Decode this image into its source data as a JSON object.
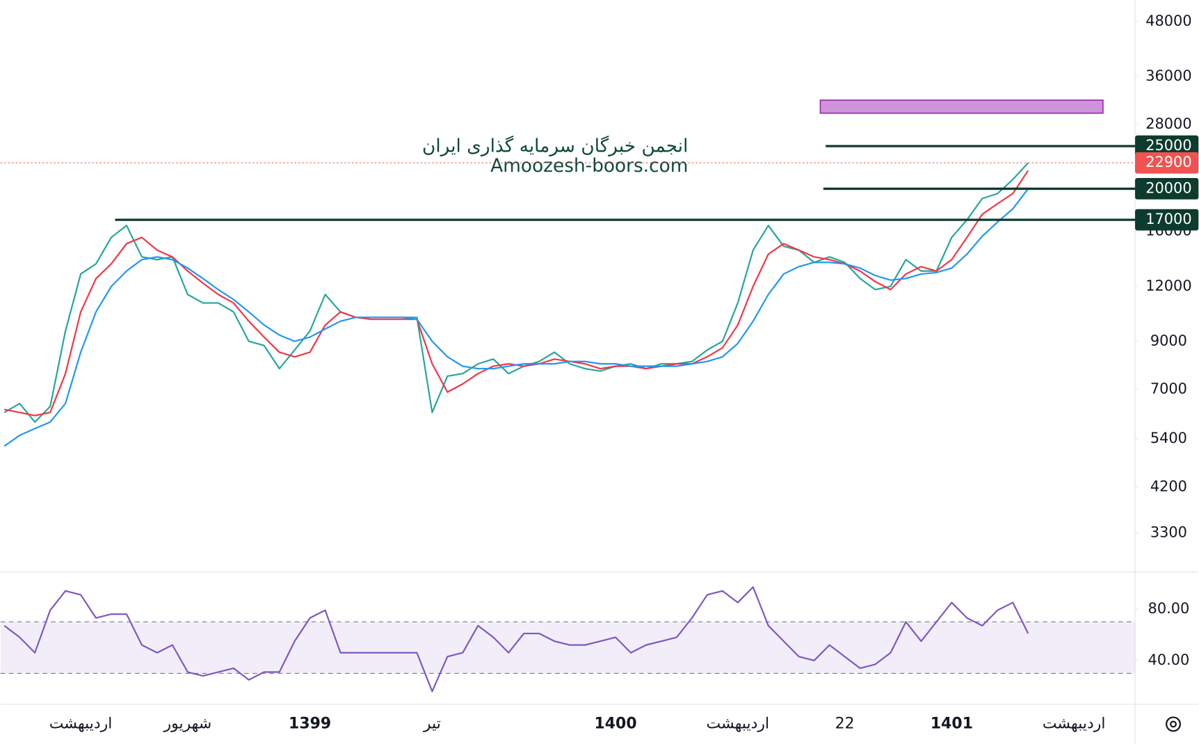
{
  "chart_data": [
    {
      "type": "line",
      "log_scale": true,
      "categories": [
        null,
        null,
        null,
        null,
        null,
        "اردیبهشت",
        null,
        null,
        null,
        null,
        null,
        null,
        "شهریور",
        null,
        null,
        null,
        null,
        null,
        null,
        null,
        "1399",
        null,
        null,
        null,
        null,
        null,
        null,
        null,
        "تیر",
        null,
        null,
        null,
        null,
        null,
        null,
        null,
        null,
        null,
        null,
        null,
        "1400",
        null,
        null,
        null,
        null,
        null,
        null,
        null,
        "اردیبهشت",
        null,
        null,
        null,
        null,
        null,
        null,
        "22",
        null,
        null,
        null,
        null,
        null,
        null,
        "1401",
        null,
        null,
        null,
        null,
        null,
        null,
        null,
        "اردیبهشت"
      ],
      "series": [
        {
          "color": "#26a69a",
          "values": [
            6200,
            6500,
            5900,
            6400,
            9500,
            12800,
            13500,
            15500,
            16500,
            14000,
            13800,
            14000,
            11500,
            11000,
            11000,
            10500,
            9000,
            8800,
            7800,
            8600,
            9500,
            11500,
            10500,
            10200,
            10200,
            10200,
            10200,
            10200,
            6200,
            7500,
            7600,
            8000,
            8200,
            7600,
            7900,
            8100,
            8500,
            8000,
            7800,
            7700,
            7900,
            8000,
            7800,
            8000,
            8000,
            8100,
            8600,
            9000,
            11000,
            14500,
            16500,
            14800,
            14500,
            13600,
            14000,
            13600,
            12500,
            11800,
            12000,
            13800,
            13000,
            13000,
            15500,
            17000,
            19000,
            19500,
            21000,
            22900,
            null,
            null,
            null
          ]
        },
        {
          "color": "#f23645",
          "values": [
            6300,
            6200,
            6100,
            6200,
            7600,
            10500,
            12500,
            13500,
            15000,
            15500,
            14500,
            14000,
            13000,
            12200,
            11500,
            11000,
            10000,
            9200,
            8500,
            8300,
            8500,
            9800,
            10500,
            10200,
            10100,
            10100,
            10100,
            10100,
            8000,
            6900,
            7200,
            7600,
            7900,
            8000,
            7900,
            8000,
            8200,
            8100,
            8000,
            7800,
            7900,
            7900,
            7800,
            7900,
            8000,
            8000,
            8300,
            8700,
            9800,
            12000,
            14200,
            15000,
            14500,
            14000,
            13800,
            13500,
            13000,
            12300,
            11800,
            12800,
            13300,
            13000,
            13800,
            15500,
            17500,
            18500,
            19500,
            22000,
            null,
            null,
            null
          ]
        },
        {
          "color": "#2196f3",
          "values": [
            5200,
            5500,
            5700,
            5900,
            6500,
            8500,
            10500,
            12000,
            13000,
            13800,
            14000,
            13800,
            13200,
            12500,
            11800,
            11200,
            10500,
            9800,
            9300,
            9000,
            9200,
            9600,
            10000,
            10200,
            10200,
            10200,
            10200,
            10100,
            9000,
            8300,
            7900,
            7800,
            7800,
            7900,
            8000,
            8000,
            8000,
            8100,
            8100,
            8000,
            8000,
            7900,
            7900,
            7900,
            7900,
            8000,
            8100,
            8300,
            8900,
            10000,
            11500,
            12800,
            13300,
            13600,
            13600,
            13500,
            13200,
            12700,
            12400,
            12500,
            12800,
            12900,
            13200,
            14200,
            15600,
            16800,
            18000,
            20000,
            null,
            null,
            null
          ]
        }
      ],
      "ylim": [
        2700,
        53700
      ],
      "yticks": [
        48000,
        36000,
        28000,
        16000,
        12000,
        9000,
        7000,
        5400,
        4200,
        3300
      ],
      "levels": [
        {
          "value": 25000,
          "color": "#0d3b2e"
        },
        {
          "value": 20000,
          "color": "#0d3b2e"
        },
        {
          "value": 17000,
          "color": "#0d3b2e"
        }
      ],
      "last": {
        "value": 22900,
        "color": "#f05350"
      },
      "zone": {
        "ylim": [
          29700,
          31800
        ],
        "color": "#ce93d8"
      },
      "watermark": [
        "انجمن خبرگان سرمایه گذاری ایران",
        "Amoozesh-boors.com"
      ]
    },
    {
      "type": "line",
      "series": [
        {
          "color": "#7e57c2",
          "values": [
            67,
            58,
            46,
            79,
            94,
            91,
            73,
            76,
            76,
            52,
            46,
            52,
            31,
            28,
            31,
            34,
            25,
            31,
            31,
            55,
            73,
            79,
            46,
            46,
            46,
            46,
            46,
            46,
            16,
            43,
            46,
            67,
            58,
            46,
            61,
            61,
            55,
            52,
            52,
            55,
            58,
            46,
            52,
            55,
            58,
            73,
            91,
            94,
            85,
            97,
            67,
            55,
            43,
            40,
            52,
            43,
            34,
            37,
            46,
            70,
            55,
            70,
            85,
            73,
            67,
            79,
            85,
            61,
            null,
            null,
            null
          ]
        }
      ],
      "ylim": [
        6,
        108
      ],
      "yticks": [
        {
          "value": 80,
          "label": "80.00"
        },
        {
          "value": 40,
          "label": "40.00"
        }
      ],
      "levels": [
        70,
        30
      ]
    }
  ]
}
